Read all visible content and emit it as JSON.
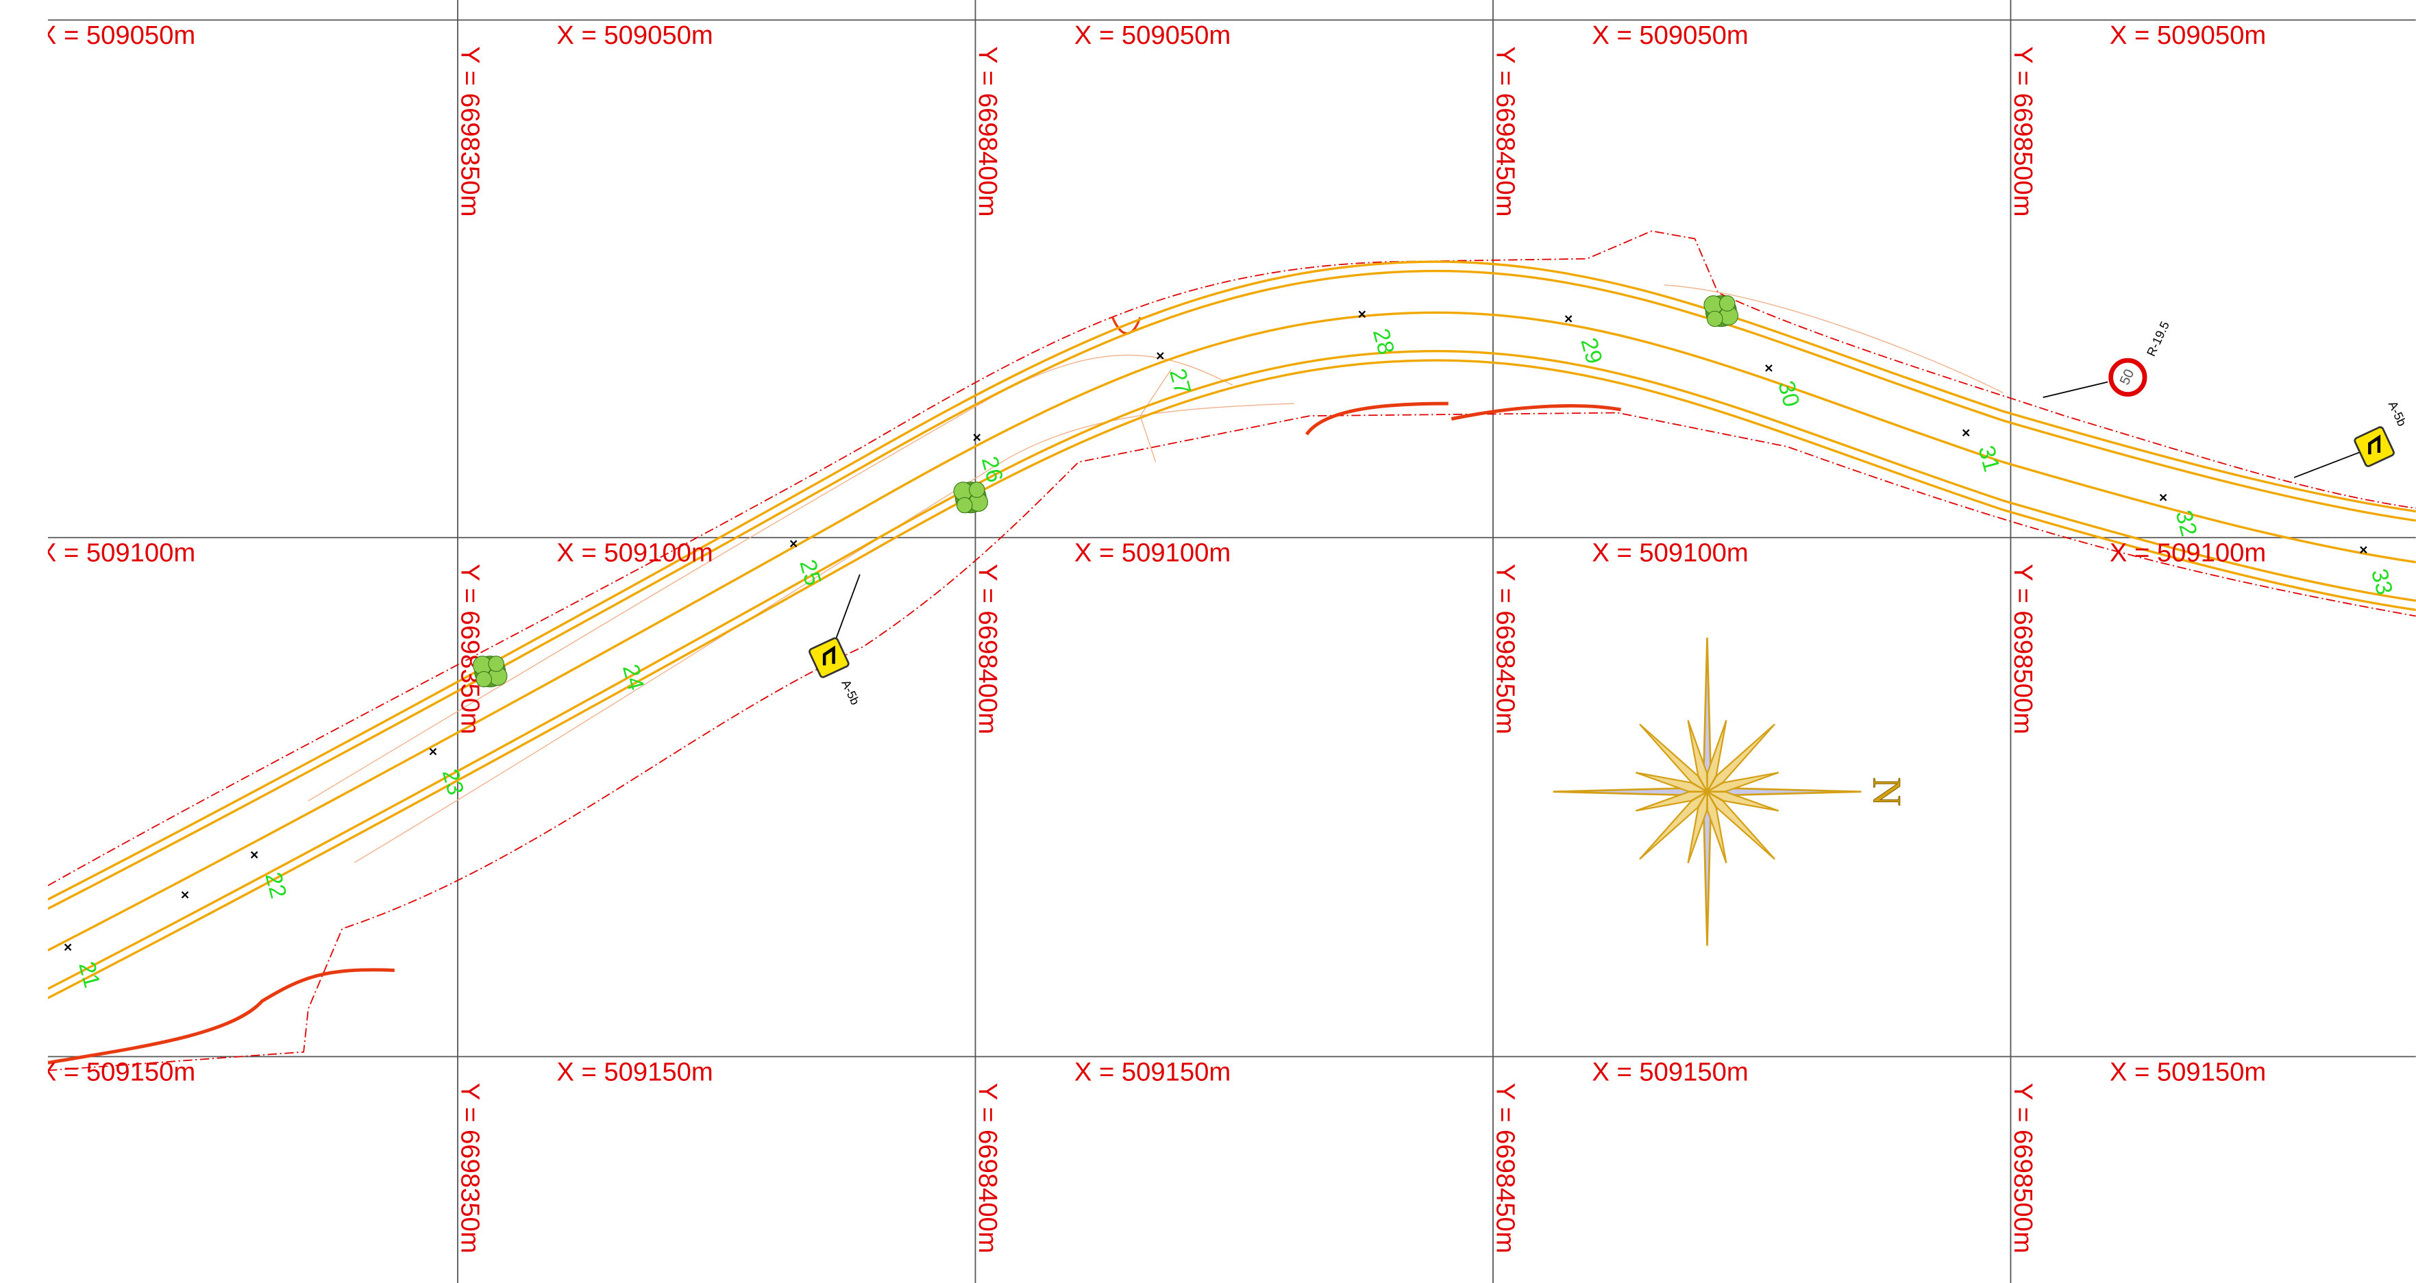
{
  "grid": {
    "x_labels": [
      "X = 509050m",
      "X = 509100m",
      "X = 509150m"
    ],
    "y_labels": [
      "Y = 6698350m",
      "Y = 6698400m",
      "Y = 6698450m",
      "Y = 6698500m"
    ]
  },
  "stations": [
    "21",
    "22",
    "23",
    "24",
    "25",
    "26",
    "27",
    "28",
    "29",
    "30",
    "31",
    "32",
    "33"
  ],
  "signs": [
    {
      "code": "A-5b"
    },
    {
      "code": "R-19.5",
      "value": "50"
    },
    {
      "code": "A-5b"
    }
  ],
  "compass": {
    "label": "N"
  }
}
